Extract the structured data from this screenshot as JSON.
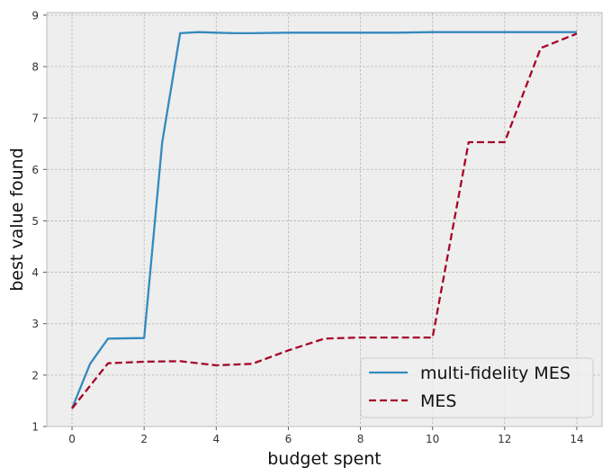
{
  "chart_data": {
    "type": "line",
    "title": "",
    "xlabel": "budget spent",
    "ylabel": "best value found",
    "xlim": [
      -0.7,
      14.7
    ],
    "ylim": [
      1.0,
      9.05
    ],
    "x_ticks": [
      0,
      2,
      4,
      6,
      8,
      10,
      12,
      14
    ],
    "y_ticks": [
      1,
      2,
      3,
      4,
      5,
      6,
      7,
      8,
      9
    ],
    "grid": true,
    "legend_position": "bottom-right",
    "series": [
      {
        "name": "multi-fidelity MES",
        "color": "#348abd",
        "style": "solid",
        "x": [
          0,
          0.5,
          1,
          2,
          2.5,
          3,
          3.5,
          4,
          4.5,
          5,
          6,
          7,
          8,
          9,
          10,
          11,
          12,
          13,
          14
        ],
        "y": [
          1.35,
          2.22,
          2.71,
          2.72,
          6.52,
          8.65,
          8.67,
          8.66,
          8.65,
          8.65,
          8.66,
          8.66,
          8.66,
          8.66,
          8.67,
          8.67,
          8.67,
          8.67,
          8.67
        ]
      },
      {
        "name": "MES",
        "color": "#a60628",
        "style": "dashed",
        "x": [
          0,
          1,
          2,
          3,
          4,
          5,
          6,
          7,
          8,
          9,
          10,
          11,
          12,
          13,
          14
        ],
        "y": [
          1.35,
          2.23,
          2.26,
          2.27,
          2.19,
          2.22,
          2.48,
          2.71,
          2.73,
          2.73,
          2.73,
          6.53,
          6.53,
          8.36,
          8.64
        ]
      }
    ]
  }
}
